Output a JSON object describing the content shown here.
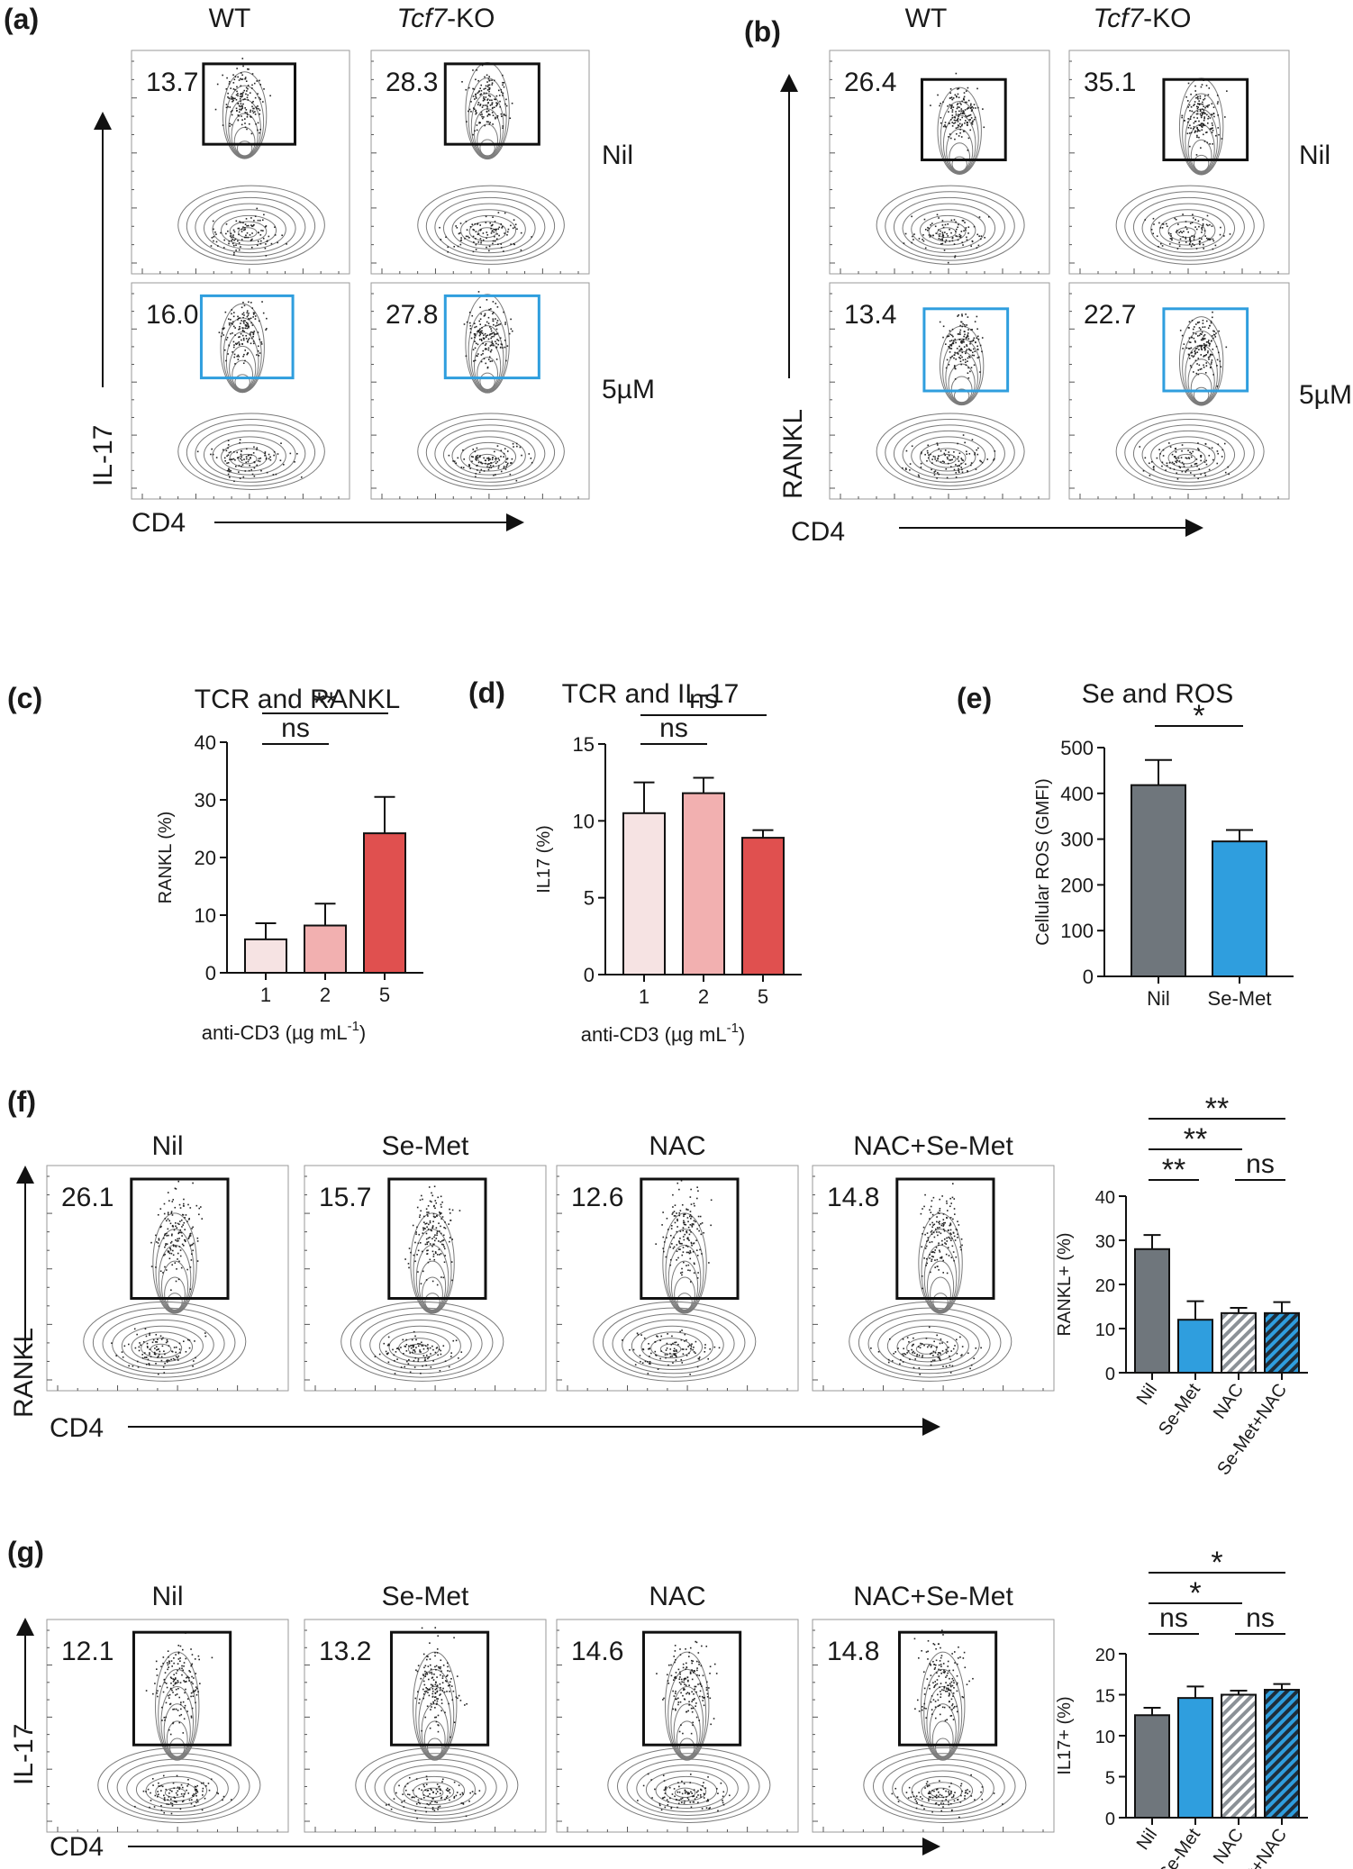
{
  "panels": {
    "a": {
      "letter": "(a)",
      "col_titles": [
        "WT",
        "Tcf7",
        "-KO"
      ],
      "row_labels": [
        "Nil",
        "5µM"
      ],
      "gates": [
        "13.7",
        "28.3",
        "16.0",
        "27.8"
      ],
      "y_axis": "IL-17",
      "x_axis": "CD4"
    },
    "b": {
      "letter": "(b)",
      "col_titles": [
        "WT",
        "Tcf7",
        "-KO"
      ],
      "row_labels": [
        "Nil",
        "5µM"
      ],
      "gates": [
        "26.4",
        "35.1",
        "13.4",
        "22.7"
      ],
      "y_axis": "RANKL",
      "x_axis": "CD4"
    },
    "f": {
      "letter": "(f)",
      "titles": [
        "Nil",
        "Se-Met",
        "NAC",
        "NAC+Se-Met"
      ],
      "gates": [
        "26.1",
        "15.7",
        "12.6",
        "14.8"
      ],
      "y_axis": "RANKL",
      "x_axis": "CD4"
    },
    "g": {
      "letter": "(g)",
      "titles": [
        "Nil",
        "Se-Met",
        "NAC",
        "NAC+Se-Met"
      ],
      "gates": [
        "12.1",
        "13.2",
        "14.6",
        "14.8"
      ],
      "y_axis": "IL-17",
      "x_axis": "CD4"
    }
  },
  "chart_data": [
    {
      "panel": "(c)",
      "type": "bar",
      "title": "TCR and RANKL",
      "categories": [
        "1",
        "2",
        "5"
      ],
      "values": [
        5.8,
        8.2,
        24.2
      ],
      "errors": [
        2.8,
        3.8,
        6.3
      ],
      "ylabel": "RANKL (%)",
      "xlabel": "anti-CD3 (µg mL",
      "xlabel_sup": "-1",
      "xlabel_end": ")",
      "ylim": [
        0,
        40
      ],
      "yticks": [
        "0",
        "10",
        "20",
        "30",
        "40"
      ],
      "colors": [
        "#f6e3e3",
        "#f2b0b0",
        "#e0504f"
      ],
      "annotations": [
        "**",
        "ns"
      ]
    },
    {
      "panel": "(d)",
      "type": "bar",
      "title": "TCR and IL-17",
      "categories": [
        "1",
        "2",
        "5"
      ],
      "values": [
        10.5,
        11.8,
        8.9
      ],
      "errors": [
        2.0,
        1.0,
        0.5
      ],
      "ylabel": "IL17 (%)",
      "xlabel": "anti-CD3 (µg mL",
      "xlabel_sup": "-1",
      "xlabel_end": ")",
      "ylim": [
        0,
        15
      ],
      "yticks": [
        "0",
        "5",
        "10",
        "15"
      ],
      "colors": [
        "#f6e3e3",
        "#f2b0b0",
        "#e0504f"
      ],
      "annotations": [
        "ns",
        "ns"
      ]
    },
    {
      "panel": "(e)",
      "type": "bar",
      "title": "Se and ROS",
      "categories": [
        "Nil",
        "Se-Met"
      ],
      "values": [
        418,
        295
      ],
      "errors": [
        55,
        25
      ],
      "ylabel": "Cellular ROS (GMFI)",
      "ylim": [
        0,
        500
      ],
      "yticks": [
        "0",
        "100",
        "200",
        "300",
        "400",
        "500"
      ],
      "colors": [
        "#6f767c",
        "#2f9ede"
      ],
      "annotations": [
        "*"
      ]
    },
    {
      "panel": "(f)",
      "type": "bar",
      "categories": [
        "Nil",
        "Se-Met",
        "NAC",
        "Se-Met+NAC"
      ],
      "values": [
        28.0,
        12.0,
        13.5,
        13.5
      ],
      "errors": [
        3.2,
        4.2,
        1.2,
        2.5
      ],
      "ylabel": "RANKL+ (%)",
      "ylim": [
        0,
        40
      ],
      "yticks": [
        "0",
        "10",
        "20",
        "30",
        "40"
      ],
      "colors": [
        "#6f767c",
        "#2f9ede",
        "hatch-white",
        "hatch-blue"
      ],
      "annotations": [
        "**",
        "**",
        "**",
        "ns"
      ]
    },
    {
      "panel": "(g)",
      "type": "bar",
      "categories": [
        "Nil",
        "Se-Met",
        "NAC",
        "Se-Met+NAC"
      ],
      "values": [
        12.5,
        14.6,
        15.0,
        15.6
      ],
      "errors": [
        0.9,
        1.4,
        0.5,
        0.7
      ],
      "ylabel": "IL17+ (%)",
      "ylim": [
        0,
        20
      ],
      "yticks": [
        "0",
        "5",
        "10",
        "15",
        "20"
      ],
      "colors": [
        "#6f767c",
        "#2f9ede",
        "hatch-white",
        "hatch-blue"
      ],
      "annotations": [
        "*",
        "*",
        "ns",
        "ns"
      ]
    }
  ]
}
